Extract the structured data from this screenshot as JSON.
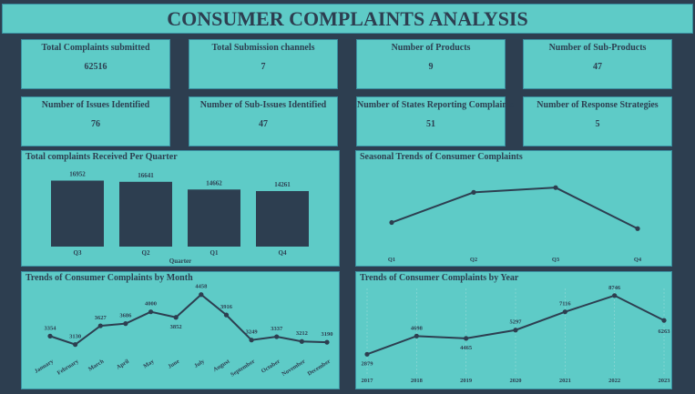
{
  "dashboard": {
    "title": "CONSUMER COMPLAINTS ANALYSIS"
  },
  "kpis": [
    {
      "title": "Total Complaints submitted",
      "value": "62516"
    },
    {
      "title": "Total Submission channels",
      "value": "7"
    },
    {
      "title": "Number of Products",
      "value": "9"
    },
    {
      "title": "Number of Sub-Products",
      "value": "47"
    },
    {
      "title": "Number of Issues Identified",
      "value": "76"
    },
    {
      "title": "Number of Sub-Issues Identified",
      "value": "47"
    },
    {
      "title": "Number of States Reporting Complaints",
      "value": "51"
    },
    {
      "title": "Number of Response Strategies",
      "value": "5"
    }
  ],
  "colors": {
    "accent": "#5ecbc7",
    "dark": "#2d3e50",
    "background": "#2d3e50"
  },
  "chart_data": [
    {
      "type": "bar",
      "title": "Total complaints Received Per Quarter",
      "xlabel": "Quarter",
      "ylabel": "",
      "categories": [
        "Q3",
        "Q2",
        "Q1",
        "Q4"
      ],
      "values": [
        16952,
        16641,
        14662,
        14261
      ],
      "ylim": [
        0,
        18000
      ]
    },
    {
      "type": "line",
      "title": "Seasonal Trends of Consumer Complaints",
      "xlabel": "",
      "ylabel": "",
      "categories": [
        "Q1",
        "Q2",
        "Q3",
        "Q4"
      ],
      "values": [
        14662,
        16641,
        16952,
        14261
      ],
      "ylim": [
        13500,
        17500
      ]
    },
    {
      "type": "line",
      "title": "Trends of Consumer Complaints by Month",
      "xlabel": "",
      "ylabel": "",
      "categories": [
        "January",
        "February",
        "March",
        "April",
        "May",
        "June",
        "July",
        "August",
        "September",
        "October",
        "November",
        "December"
      ],
      "values": [
        3354,
        3130,
        3627,
        3686,
        4000,
        3852,
        4458,
        3916,
        3249,
        3337,
        3212,
        3190
      ],
      "ylim": [
        3000,
        4500
      ]
    },
    {
      "type": "line",
      "title": "Trends of Consumer Complaints by Year",
      "xlabel": "",
      "ylabel": "",
      "categories": [
        "2017",
        "2018",
        "2019",
        "2020",
        "2021",
        "2022",
        "2023"
      ],
      "values": [
        2879,
        4698,
        4465,
        5297,
        7116,
        8746,
        6263
      ],
      "ylim": [
        2000,
        9000
      ],
      "grid": true
    }
  ]
}
